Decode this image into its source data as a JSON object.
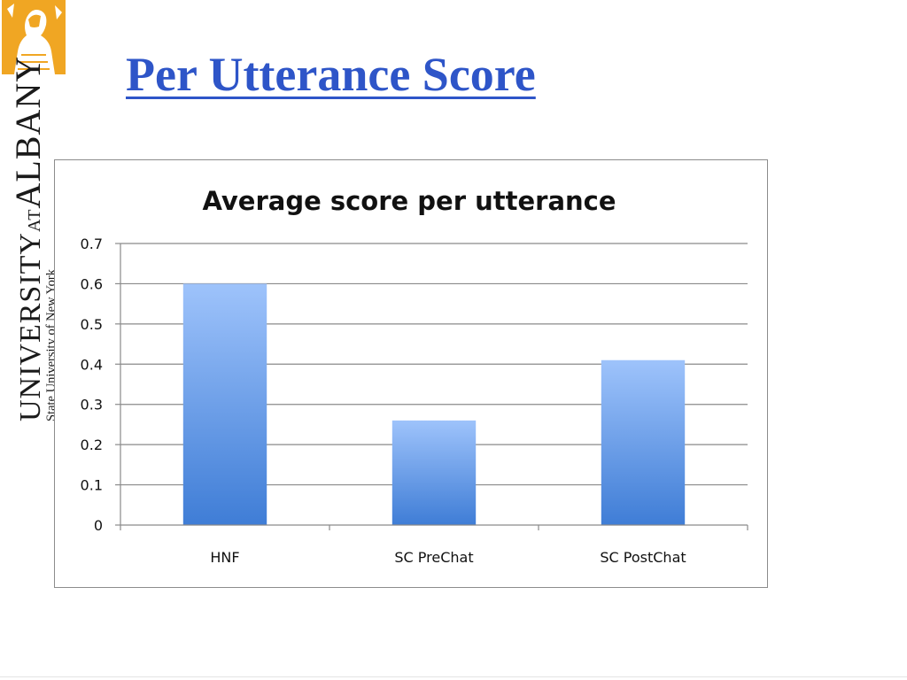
{
  "slide": {
    "title": "Per Utterance Score"
  },
  "logo": {
    "main_prefix": "UNIVERSITY",
    "main_at": "AT",
    "main_suffix": "ALBANY",
    "sub": "State University of New York"
  },
  "colors": {
    "title": "#2e55c8",
    "bar_top": "#9ec3fb",
    "bar_bottom": "#3f7dd6",
    "gridline": "#8a8a8a",
    "logo_gold": "#f0a623"
  },
  "chart_data": {
    "type": "bar",
    "title": "Average score per utterance",
    "categories": [
      "HNF",
      "SC PreChat",
      "SC PostChat"
    ],
    "values": [
      0.6,
      0.26,
      0.41
    ],
    "xlabel": "",
    "ylabel": "",
    "ylim": [
      0,
      0.7
    ],
    "yticks": [
      "0",
      "0.1",
      "0.2",
      "0.3",
      "0.4",
      "0.5",
      "0.6",
      "0.7"
    ],
    "grid": true,
    "legend": "none"
  }
}
